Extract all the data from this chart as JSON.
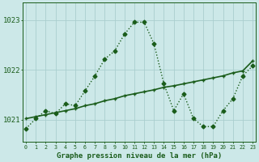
{
  "title": "Graphe pression niveau de la mer (hPa)",
  "background_color": "#cce8e8",
  "line_color": "#1a5c1a",
  "grid_color": "#aacece",
  "x_labels": [
    "0",
    "1",
    "2",
    "3",
    "4",
    "5",
    "6",
    "7",
    "8",
    "9",
    "10",
    "11",
    "12",
    "13",
    "14",
    "15",
    "16",
    "17",
    "18",
    "19",
    "20",
    "21",
    "22",
    "23"
  ],
  "y_ticks": [
    1021,
    1022,
    1023
  ],
  "ylim": [
    1020.55,
    1023.35
  ],
  "xlim": [
    -0.3,
    23.3
  ],
  "series1": [
    1020.82,
    1021.02,
    1021.18,
    1021.12,
    1021.32,
    1021.28,
    1021.58,
    1021.88,
    1022.22,
    1022.38,
    1022.72,
    1022.96,
    1022.96,
    1022.52,
    1021.72,
    1021.18,
    1021.52,
    1021.02,
    1020.86,
    1020.86,
    1021.18,
    1021.42,
    1021.88,
    1022.08
  ],
  "series2": [
    1021.02,
    1021.06,
    1021.1,
    1021.14,
    1021.18,
    1021.22,
    1021.28,
    1021.32,
    1021.38,
    1021.42,
    1021.48,
    1021.52,
    1021.56,
    1021.6,
    1021.65,
    1021.68,
    1021.72,
    1021.76,
    1021.8,
    1021.84,
    1021.88,
    1021.94,
    1021.98,
    1022.18
  ],
  "marker_size": 2.5,
  "linewidth1": 1.0,
  "linewidth2": 1.2,
  "figsize": [
    3.2,
    2.0
  ],
  "dpi": 100
}
